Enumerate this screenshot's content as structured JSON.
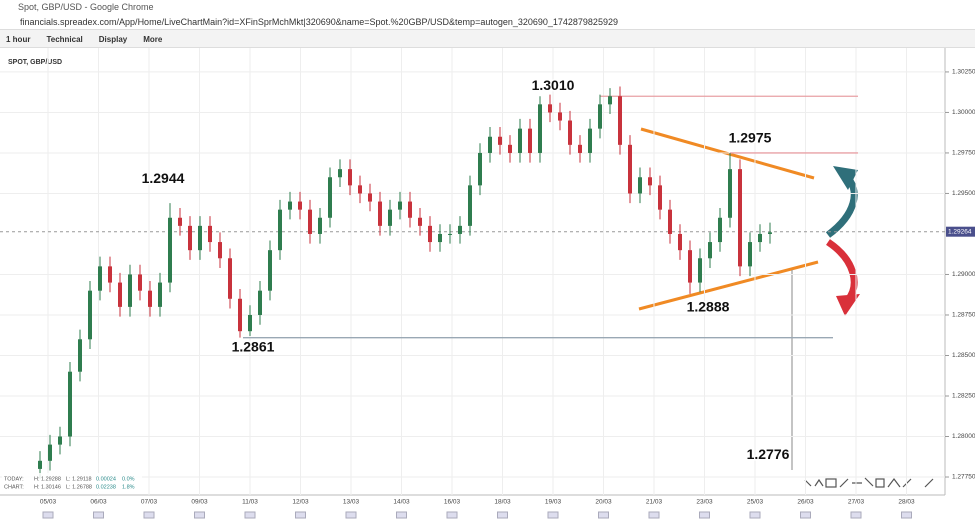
{
  "window": {
    "title": "Spot, GBP/USD - Google Chrome",
    "url": "financials.spreadex.com/App/Home/LiveChartMain?id=XFinSprMchMkt|320690&name=Spot.%20GBP/USD&temp=autogen_320690_1742879825929"
  },
  "toolbar": [
    "1 hour",
    "Technical",
    "Display",
    "More"
  ],
  "chart_data": {
    "type": "candlestick",
    "title": "SPOT, GBP/USD",
    "ylim": [
      1.27639,
      1.30373
    ],
    "yticks": [
      {
        "value": 1.2775,
        "label": "1.27750"
      },
      {
        "value": 1.28,
        "label": "1.28000"
      },
      {
        "value": 1.2825,
        "label": "1.28250"
      },
      {
        "value": 1.285,
        "label": "1.28500"
      },
      {
        "value": 1.2875,
        "label": "1.28750"
      },
      {
        "value": 1.29,
        "label": "1.29000"
      },
      {
        "value": 1.295,
        "label": "1.29500"
      },
      {
        "value": 1.2975,
        "label": "1.29750"
      },
      {
        "value": 1.3,
        "label": "1.30000"
      },
      {
        "value": 1.3025,
        "label": "1.30250"
      }
    ],
    "categories": [
      "05/03",
      "06/03",
      "07/03",
      "09/03",
      "11/03",
      "12/03",
      "13/03",
      "14/03",
      "16/03",
      "18/03",
      "19/03",
      "20/03",
      "21/03",
      "23/03",
      "25/03",
      "26/03",
      "27/03",
      "28/03"
    ],
    "grid": true,
    "up_color": "#2f7d4f",
    "down_color": "#c8323c",
    "current_price": {
      "value": 1.29264,
      "label": "1.29264"
    },
    "candles": [
      [
        1.278,
        1.2791,
        1.2774,
        1.2785
      ],
      [
        1.2785,
        1.2801,
        1.2779,
        1.2795
      ],
      [
        1.2795,
        1.2806,
        1.2789,
        1.28
      ],
      [
        1.28,
        1.2846,
        1.2794,
        1.284
      ],
      [
        1.284,
        1.2866,
        1.2834,
        1.286
      ],
      [
        1.286,
        1.2896,
        1.2854,
        1.289
      ],
      [
        1.289,
        1.2911,
        1.2884,
        1.2905
      ],
      [
        1.2905,
        1.2911,
        1.2889,
        1.2895
      ],
      [
        1.2895,
        1.2901,
        1.2874,
        1.288
      ],
      [
        1.288,
        1.2906,
        1.2874,
        1.29
      ],
      [
        1.29,
        1.2906,
        1.2884,
        1.289
      ],
      [
        1.289,
        1.2896,
        1.2874,
        1.288
      ],
      [
        1.288,
        1.2901,
        1.2874,
        1.2895
      ],
      [
        1.2895,
        1.2944,
        1.2889,
        1.2935
      ],
      [
        1.2935,
        1.2941,
        1.2924,
        1.293
      ],
      [
        1.293,
        1.2936,
        1.2909,
        1.2915
      ],
      [
        1.2915,
        1.2936,
        1.2909,
        1.293
      ],
      [
        1.293,
        1.2936,
        1.2914,
        1.292
      ],
      [
        1.292,
        1.2926,
        1.2904,
        1.291
      ],
      [
        1.291,
        1.2916,
        1.2879,
        1.2885
      ],
      [
        1.2885,
        1.2891,
        1.2861,
        1.2865
      ],
      [
        1.2865,
        1.2881,
        1.2862,
        1.2875
      ],
      [
        1.2875,
        1.2896,
        1.2869,
        1.289
      ],
      [
        1.289,
        1.2921,
        1.2884,
        1.2915
      ],
      [
        1.2915,
        1.2946,
        1.2909,
        1.294
      ],
      [
        1.294,
        1.2951,
        1.2934,
        1.2945
      ],
      [
        1.2945,
        1.2951,
        1.2934,
        1.294
      ],
      [
        1.294,
        1.2946,
        1.2919,
        1.2925
      ],
      [
        1.2925,
        1.2941,
        1.2919,
        1.2935
      ],
      [
        1.2935,
        1.2966,
        1.2929,
        1.296
      ],
      [
        1.296,
        1.2971,
        1.2954,
        1.2965
      ],
      [
        1.2965,
        1.2971,
        1.2949,
        1.2955
      ],
      [
        1.2955,
        1.2961,
        1.2944,
        1.295
      ],
      [
        1.295,
        1.2956,
        1.2939,
        1.2945
      ],
      [
        1.2945,
        1.2951,
        1.2924,
        1.293
      ],
      [
        1.293,
        1.2946,
        1.2924,
        1.294
      ],
      [
        1.294,
        1.2951,
        1.2934,
        1.2945
      ],
      [
        1.2945,
        1.2951,
        1.2929,
        1.2935
      ],
      [
        1.2935,
        1.2941,
        1.2924,
        1.293
      ],
      [
        1.293,
        1.2936,
        1.2914,
        1.292
      ],
      [
        1.292,
        1.2931,
        1.2914,
        1.2925
      ],
      [
        1.2925,
        1.2931,
        1.2919,
        1.2925
      ],
      [
        1.2925,
        1.2936,
        1.2919,
        1.293
      ],
      [
        1.293,
        1.2961,
        1.2924,
        1.2955
      ],
      [
        1.2955,
        1.2981,
        1.2949,
        1.2975
      ],
      [
        1.2975,
        1.2991,
        1.2969,
        1.2985
      ],
      [
        1.2985,
        1.2991,
        1.2974,
        1.298
      ],
      [
        1.298,
        1.2986,
        1.2969,
        1.2975
      ],
      [
        1.2975,
        1.2996,
        1.2969,
        1.299
      ],
      [
        1.299,
        1.2996,
        1.2969,
        1.2975
      ],
      [
        1.2975,
        1.301,
        1.2969,
        1.3005
      ],
      [
        1.3005,
        1.3011,
        1.2994,
        1.3
      ],
      [
        1.3,
        1.3006,
        1.2989,
        1.2995
      ],
      [
        1.2995,
        1.3001,
        1.2974,
        1.298
      ],
      [
        1.298,
        1.2986,
        1.2969,
        1.2975
      ],
      [
        1.2975,
        1.2996,
        1.2969,
        1.299
      ],
      [
        1.299,
        1.3011,
        1.2984,
        1.3005
      ],
      [
        1.3005,
        1.3015,
        1.2999,
        1.301
      ],
      [
        1.301,
        1.3016,
        1.2974,
        1.298
      ],
      [
        1.298,
        1.2986,
        1.2944,
        1.295
      ],
      [
        1.295,
        1.2966,
        1.2944,
        1.296
      ],
      [
        1.296,
        1.2966,
        1.2949,
        1.2955
      ],
      [
        1.2955,
        1.2961,
        1.2934,
        1.294
      ],
      [
        1.294,
        1.2946,
        1.2919,
        1.2925
      ],
      [
        1.2925,
        1.2931,
        1.2909,
        1.2915
      ],
      [
        1.2915,
        1.2921,
        1.2888,
        1.2895
      ],
      [
        1.2895,
        1.2916,
        1.2889,
        1.291
      ],
      [
        1.291,
        1.2926,
        1.2904,
        1.292
      ],
      [
        1.292,
        1.2941,
        1.2914,
        1.2935
      ],
      [
        1.2935,
        1.2975,
        1.2929,
        1.2965
      ],
      [
        1.2965,
        1.2971,
        1.2899,
        1.2905
      ],
      [
        1.2905,
        1.2926,
        1.2899,
        1.292
      ],
      [
        1.292,
        1.2931,
        1.2914,
        1.2925
      ],
      [
        1.2925,
        1.2932,
        1.2919,
        1.2926
      ]
    ],
    "annotations": [
      {
        "value": 1.301,
        "label": "1.3010"
      },
      {
        "value": 1.2975,
        "label": "1.2975"
      },
      {
        "value": 1.2944,
        "label": "1.2944"
      },
      {
        "value": 1.2861,
        "label": "1.2861"
      },
      {
        "value": 1.2888,
        "label": "1.2888"
      },
      {
        "value": 1.2776,
        "label": "1.2776"
      }
    ],
    "info": {
      "today": [
        "TODAY:",
        "H: 1.29288",
        "L: 1.29118",
        "0.00024",
        "0.0%"
      ],
      "chart": [
        "CHART:",
        "H: 1.30146",
        "L: 1.26788",
        "0.02238",
        "1.8%"
      ]
    }
  }
}
